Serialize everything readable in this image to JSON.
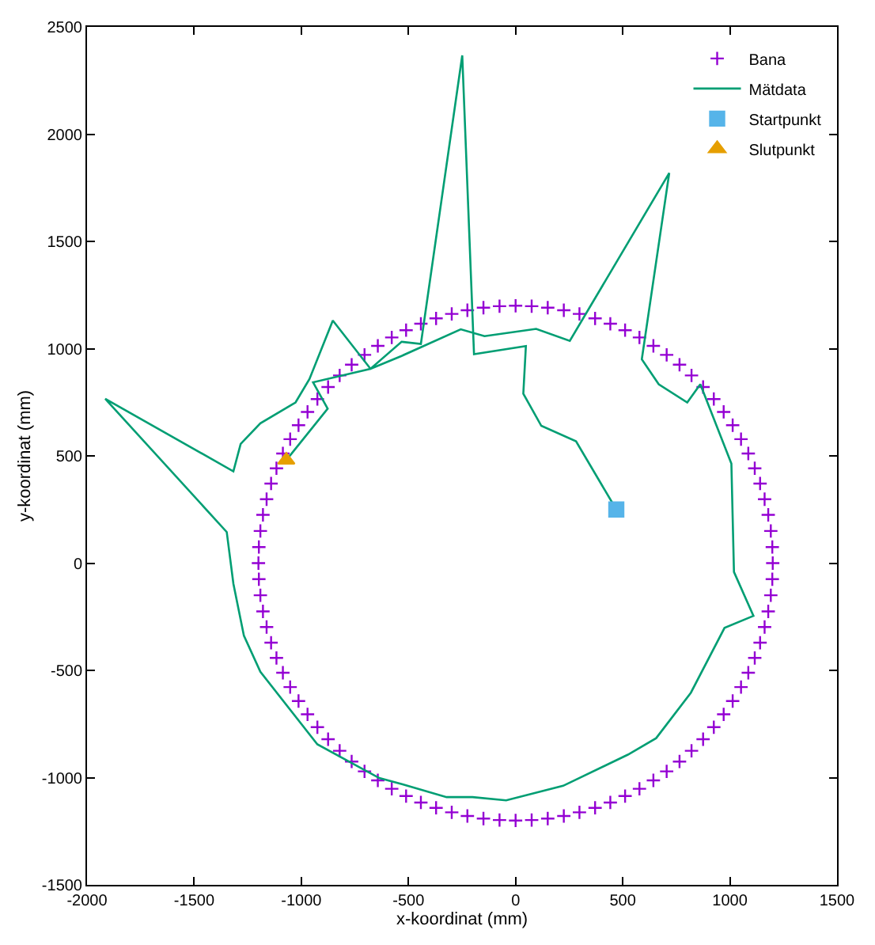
{
  "chart_data": {
    "type": "scatter",
    "xlabel": "x-koordinat (mm)",
    "ylabel": "y-koordinat (mm)",
    "xlim": [
      -2000,
      1500
    ],
    "xticks": [
      -2000,
      -1500,
      -1000,
      -500,
      0,
      500,
      1000,
      1500
    ],
    "ylim": [
      -1500,
      2500
    ],
    "yticks": [
      -1500,
      -1000,
      -500,
      0,
      500,
      1000,
      1500,
      2000,
      2500
    ],
    "legend": "top right",
    "series": [
      {
        "name": "Bana",
        "marker": "cross",
        "color": "#9400d3",
        "x": [
          1200,
          1198,
          1191,
          1179,
          1162,
          1141,
          1116,
          1086,
          1052,
          1013,
          971,
          925,
          875,
          821,
          765,
          705,
          643,
          578,
          511,
          442,
          371,
          298,
          225,
          150,
          75,
          0,
          -75,
          -150,
          -225,
          -298,
          -371,
          -442,
          -511,
          -578,
          -643,
          -705,
          -765,
          -821,
          -875,
          -925,
          -971,
          -1013,
          -1052,
          -1086,
          -1116,
          -1141,
          -1162,
          -1179,
          -1191,
          -1198,
          -1200,
          -1198,
          -1191,
          -1179,
          -1162,
          -1141,
          -1116,
          -1086,
          -1052,
          -1013,
          -971,
          -925,
          -875,
          -821,
          -765,
          -705,
          -643,
          -578,
          -511,
          -442,
          -371,
          -298,
          -225,
          -150,
          -75,
          0,
          75,
          150,
          225,
          298,
          371,
          442,
          511,
          578,
          643,
          705,
          765,
          821,
          875,
          925,
          971,
          1013,
          1052,
          1086,
          1116,
          1141,
          1162,
          1179,
          1191,
          1198
        ],
        "values": [
          0,
          75,
          150,
          225,
          298,
          371,
          442,
          511,
          578,
          643,
          705,
          765,
          821,
          875,
          925,
          971,
          1013,
          1052,
          1086,
          1116,
          1141,
          1162,
          1179,
          1191,
          1198,
          1200,
          1198,
          1191,
          1179,
          1162,
          1141,
          1116,
          1086,
          1052,
          1013,
          971,
          925,
          875,
          821,
          765,
          705,
          643,
          578,
          511,
          442,
          371,
          298,
          225,
          150,
          75,
          0,
          -75,
          -150,
          -225,
          -298,
          -371,
          -442,
          -511,
          -578,
          -643,
          -705,
          -765,
          -821,
          -875,
          -925,
          -971,
          -1013,
          -1052,
          -1086,
          -1116,
          -1141,
          -1162,
          -1179,
          -1191,
          -1198,
          -1200,
          -1198,
          -1191,
          -1179,
          -1162,
          -1141,
          -1116,
          -1086,
          -1052,
          -1013,
          -971,
          -925,
          -875,
          -821,
          -765,
          -705,
          -643,
          -578,
          -511,
          -442,
          -371,
          -298,
          -225,
          -150,
          -75
        ]
      },
      {
        "name": "Mätdata",
        "type": "line",
        "marker": "none",
        "line_style": "solid",
        "color": "#009e73",
        "x": [
          470,
          282,
          120,
          36,
          48,
          -194,
          -249,
          -442,
          -532,
          -677,
          -853,
          -962,
          -1027,
          -1191,
          -1283,
          -1317,
          -1915,
          -1348,
          -1317,
          -1268,
          -1191,
          -925,
          -768,
          -636,
          -527,
          -322,
          -201,
          -44,
          222,
          524,
          656,
          818,
          975,
          1110,
          1019,
          1007,
          862,
          801,
          668,
          589,
          717,
          253,
          96,
          -145,
          -256,
          -532,
          -677,
          -945,
          -877,
          -1070
        ],
        "values": [
          250,
          568,
          640,
          790,
          1012,
          974,
          2367,
          1022,
          1032,
          906,
          1131,
          858,
          749,
          652,
          556,
          428,
          766,
          145,
          -96,
          -338,
          -507,
          -845,
          -930,
          -1002,
          -1031,
          -1091,
          -1091,
          -1106,
          -1038,
          -893,
          -816,
          -604,
          -302,
          -246,
          -41,
          464,
          834,
          749,
          834,
          950,
          1819,
          1036,
          1092,
          1058,
          1090,
          966,
          906,
          843,
          720,
          480
        ]
      },
      {
        "name": "Startpunkt",
        "marker": "square",
        "color": "#56b4e9",
        "x": [
          470
        ],
        "values": [
          250
        ]
      },
      {
        "name": "Slutpunkt",
        "marker": "triangle",
        "color": "#e69f00",
        "x": [
          -1070
        ],
        "values": [
          480
        ]
      }
    ]
  }
}
